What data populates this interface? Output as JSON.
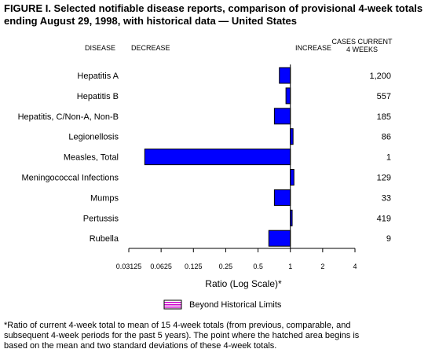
{
  "title_lines": [
    "FIGURE I. Selected notifiable disease reports, comparison of provisional 4-week totals",
    "ending August 29, 1998, with historical data — United States"
  ],
  "header": {
    "disease": "DISEASE",
    "decrease": "DECREASE",
    "increase": "INCREASE",
    "cases_line1": "CASES CURRENT",
    "cases_line2": "4 WEEKS"
  },
  "legend": {
    "label": "Beyond Historical Limits"
  },
  "footnote_lines": [
    "*Ratio of current 4-week total to mean of 15 4-week totals (from previous, comparable, and",
    "subsequent 4-week periods for the past 5 years). The point where the hatched area begins is",
    "based on the mean and two standard deviations of these 4-week totals."
  ],
  "colors": {
    "bar": "#0000ff",
    "legend_fill": "#cc00cc"
  },
  "chart_data": {
    "type": "bar",
    "orientation": "horizontal",
    "scale": "log2",
    "baseline": 1,
    "xlabel": "Ratio (Log Scale)*",
    "xlim": [
      0.03125,
      4
    ],
    "xticks": [
      0.03125,
      0.0625,
      0.125,
      0.25,
      0.5,
      1,
      2,
      4
    ],
    "xtick_labels": [
      "0.03125",
      "0.0625",
      "0.125",
      "0.25",
      "0.5",
      "1",
      "2",
      "4"
    ],
    "categories": [
      "Hepatitis A",
      "Hepatitis B",
      "Hepatitis, C/Non-A, Non-B",
      "Legionellosis",
      "Measles, Total",
      "Meningococcal Infections",
      "Mumps",
      "Pertussis",
      "Rubella"
    ],
    "values": [
      0.79,
      0.91,
      0.71,
      1.06,
      0.044,
      1.08,
      0.71,
      1.04,
      0.63
    ],
    "cases": [
      "1,200",
      "557",
      "185",
      "86",
      "1",
      "129",
      "33",
      "419",
      "9"
    ]
  }
}
